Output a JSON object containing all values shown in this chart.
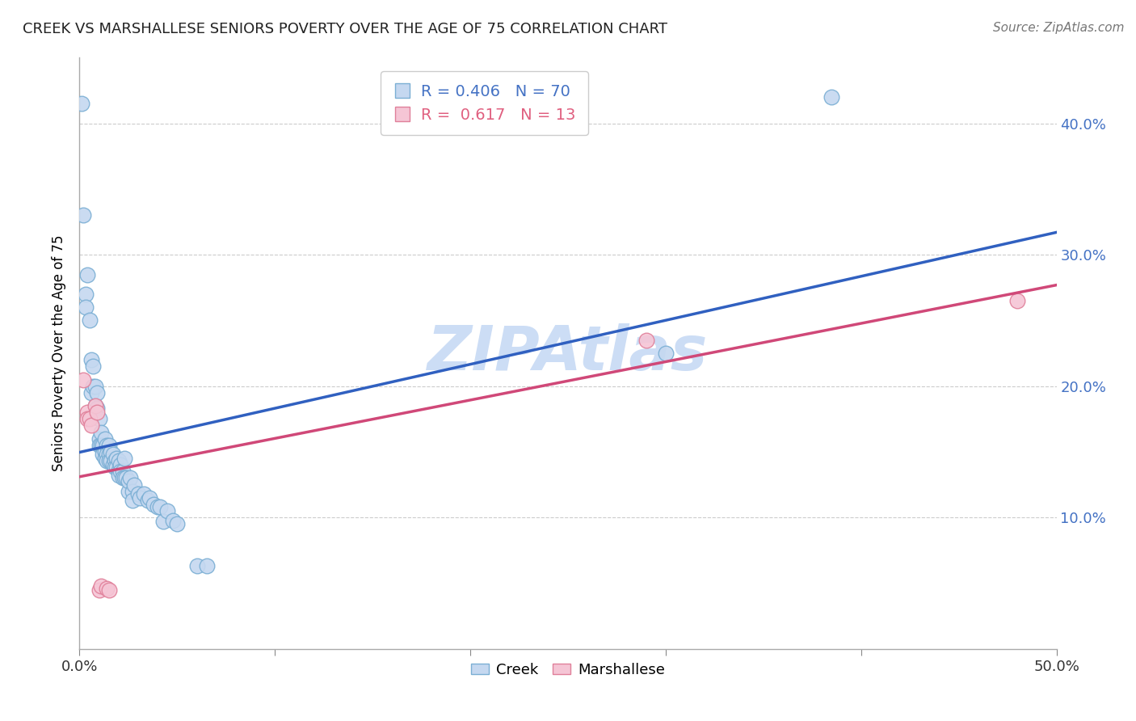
{
  "title": "CREEK VS MARSHALLESE SENIORS POVERTY OVER THE AGE OF 75 CORRELATION CHART",
  "source": "Source: ZipAtlas.com",
  "ylabel": "Seniors Poverty Over the Age of 75",
  "xlim": [
    0.0,
    0.5
  ],
  "ylim": [
    0.0,
    0.45
  ],
  "xticks": [
    0.0,
    0.1,
    0.2,
    0.3,
    0.4,
    0.5
  ],
  "xtick_labels": [
    "0.0%",
    "",
    "",
    "",
    "",
    "50.0%"
  ],
  "yticks": [
    0.1,
    0.2,
    0.3,
    0.4
  ],
  "ytick_labels": [
    "10.0%",
    "20.0%",
    "30.0%",
    "40.0%"
  ],
  "creek_color": "#c5d8f0",
  "creek_edge_color": "#7bafd4",
  "marshallese_color": "#f5c5d5",
  "marshallese_edge_color": "#e0809a",
  "creek_R": 0.406,
  "creek_N": 70,
  "marshallese_R": 0.617,
  "marshallese_N": 13,
  "creek_line_color": "#3060c0",
  "marshallese_line_color": "#d04878",
  "legend_color_creek": "#4472c4",
  "legend_color_marshallese": "#e06080",
  "watermark": "ZIPAtlas",
  "watermark_color": "#ccddf5",
  "creek_points": [
    [
      0.001,
      0.415
    ],
    [
      0.002,
      0.33
    ],
    [
      0.003,
      0.27
    ],
    [
      0.003,
      0.26
    ],
    [
      0.004,
      0.285
    ],
    [
      0.005,
      0.25
    ],
    [
      0.006,
      0.22
    ],
    [
      0.006,
      0.195
    ],
    [
      0.007,
      0.215
    ],
    [
      0.007,
      0.2
    ],
    [
      0.008,
      0.2
    ],
    [
      0.008,
      0.185
    ],
    [
      0.009,
      0.195
    ],
    [
      0.009,
      0.183
    ],
    [
      0.01,
      0.175
    ],
    [
      0.01,
      0.16
    ],
    [
      0.01,
      0.155
    ],
    [
      0.011,
      0.165
    ],
    [
      0.011,
      0.155
    ],
    [
      0.012,
      0.155
    ],
    [
      0.012,
      0.148
    ],
    [
      0.013,
      0.16
    ],
    [
      0.013,
      0.15
    ],
    [
      0.013,
      0.145
    ],
    [
      0.014,
      0.155
    ],
    [
      0.014,
      0.148
    ],
    [
      0.014,
      0.143
    ],
    [
      0.015,
      0.155
    ],
    [
      0.015,
      0.148
    ],
    [
      0.015,
      0.143
    ],
    [
      0.016,
      0.15
    ],
    [
      0.016,
      0.143
    ],
    [
      0.017,
      0.148
    ],
    [
      0.017,
      0.14
    ],
    [
      0.018,
      0.143
    ],
    [
      0.018,
      0.138
    ],
    [
      0.019,
      0.145
    ],
    [
      0.019,
      0.138
    ],
    [
      0.02,
      0.143
    ],
    [
      0.02,
      0.136
    ],
    [
      0.02,
      0.132
    ],
    [
      0.021,
      0.14
    ],
    [
      0.021,
      0.135
    ],
    [
      0.022,
      0.135
    ],
    [
      0.022,
      0.13
    ],
    [
      0.023,
      0.145
    ],
    [
      0.023,
      0.13
    ],
    [
      0.024,
      0.13
    ],
    [
      0.025,
      0.12
    ],
    [
      0.025,
      0.128
    ],
    [
      0.026,
      0.13
    ],
    [
      0.027,
      0.12
    ],
    [
      0.027,
      0.113
    ],
    [
      0.028,
      0.125
    ],
    [
      0.03,
      0.118
    ],
    [
      0.031,
      0.115
    ],
    [
      0.033,
      0.118
    ],
    [
      0.035,
      0.113
    ],
    [
      0.036,
      0.115
    ],
    [
      0.038,
      0.11
    ],
    [
      0.04,
      0.108
    ],
    [
      0.041,
      0.108
    ],
    [
      0.043,
      0.097
    ],
    [
      0.045,
      0.105
    ],
    [
      0.048,
      0.098
    ],
    [
      0.05,
      0.095
    ],
    [
      0.06,
      0.063
    ],
    [
      0.065,
      0.063
    ],
    [
      0.3,
      0.225
    ],
    [
      0.385,
      0.42
    ]
  ],
  "marshallese_points": [
    [
      0.002,
      0.205
    ],
    [
      0.004,
      0.18
    ],
    [
      0.004,
      0.175
    ],
    [
      0.005,
      0.175
    ],
    [
      0.006,
      0.17
    ],
    [
      0.008,
      0.185
    ],
    [
      0.009,
      0.18
    ],
    [
      0.01,
      0.045
    ],
    [
      0.011,
      0.048
    ],
    [
      0.014,
      0.046
    ],
    [
      0.015,
      0.045
    ],
    [
      0.29,
      0.235
    ],
    [
      0.48,
      0.265
    ]
  ]
}
